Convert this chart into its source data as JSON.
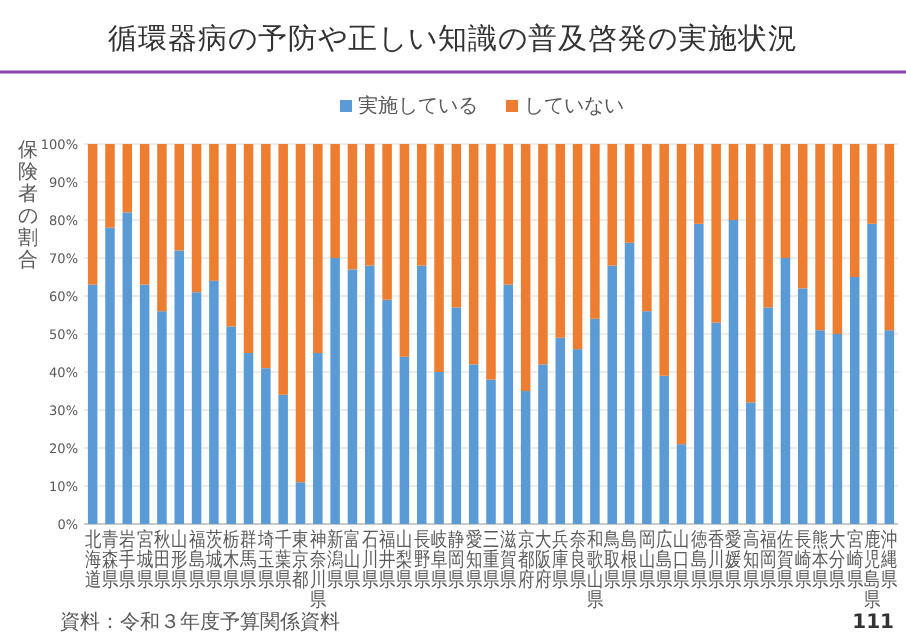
{
  "chart_data": {
    "type": "bar",
    "stacked": true,
    "title": "循環器病の予防や正しい知識の普及啓発の実施状況",
    "ylabel": "保険者の割合",
    "categories": [
      "北海道",
      "青森県",
      "岩手県",
      "宮城県",
      "秋田県",
      "山形県",
      "福島県",
      "茨城県",
      "栃木県",
      "群馬県",
      "埼玉県",
      "千葉県",
      "東京都",
      "神奈川県",
      "新潟県",
      "富山県",
      "石川県",
      "福井県",
      "山梨県",
      "長野県",
      "岐阜県",
      "静岡県",
      "愛知県",
      "三重県",
      "滋賀県",
      "京都府",
      "大阪府",
      "兵庫県",
      "奈良県",
      "和歌山県",
      "鳥取県",
      "島根県",
      "岡山県",
      "広島県",
      "山口県",
      "徳島県",
      "香川県",
      "愛媛県",
      "高知県",
      "福岡県",
      "佐賀県",
      "長崎県",
      "熊本県",
      "大分県",
      "宮崎県",
      "鹿児島県",
      "沖縄県"
    ],
    "series": [
      {
        "name": "実施している",
        "color": "#5b9bd5",
        "values": [
          63,
          78,
          82,
          63,
          56,
          72,
          61,
          64,
          52,
          45,
          41,
          34,
          11,
          45,
          70,
          67,
          68,
          59,
          44,
          68,
          40,
          57,
          42,
          38,
          63,
          35,
          42,
          49,
          46,
          54,
          68,
          74,
          56,
          39,
          21,
          79,
          53,
          80,
          32,
          57,
          70,
          62,
          51,
          50,
          65,
          79,
          51
        ]
      },
      {
        "name": "していない",
        "color": "#ed7d31",
        "values": [
          37,
          22,
          18,
          37,
          44,
          28,
          39,
          36,
          48,
          55,
          59,
          66,
          89,
          55,
          30,
          33,
          32,
          41,
          56,
          32,
          60,
          43,
          58,
          62,
          37,
          65,
          58,
          51,
          54,
          46,
          32,
          26,
          44,
          61,
          79,
          21,
          47,
          20,
          68,
          43,
          30,
          38,
          49,
          50,
          35,
          21,
          49
        ]
      }
    ],
    "ylim": [
      0,
      100
    ],
    "yticks": [
      {
        "value": 0,
        "label": "0%"
      },
      {
        "value": 10,
        "label": "10%"
      },
      {
        "value": 20,
        "label": "20%"
      },
      {
        "value": 30,
        "label": "30%"
      },
      {
        "value": 40,
        "label": "40%"
      },
      {
        "value": 50,
        "label": "50%"
      },
      {
        "value": 60,
        "label": "60%"
      },
      {
        "value": 70,
        "label": "70%"
      },
      {
        "value": 80,
        "label": "80%"
      },
      {
        "value": 90,
        "label": "90%"
      },
      {
        "value": 100,
        "label": "100%"
      }
    ],
    "grid": "y",
    "legend": "top",
    "annotations": [
      "資料：令和３年度予算関係資料",
      "111"
    ]
  }
}
